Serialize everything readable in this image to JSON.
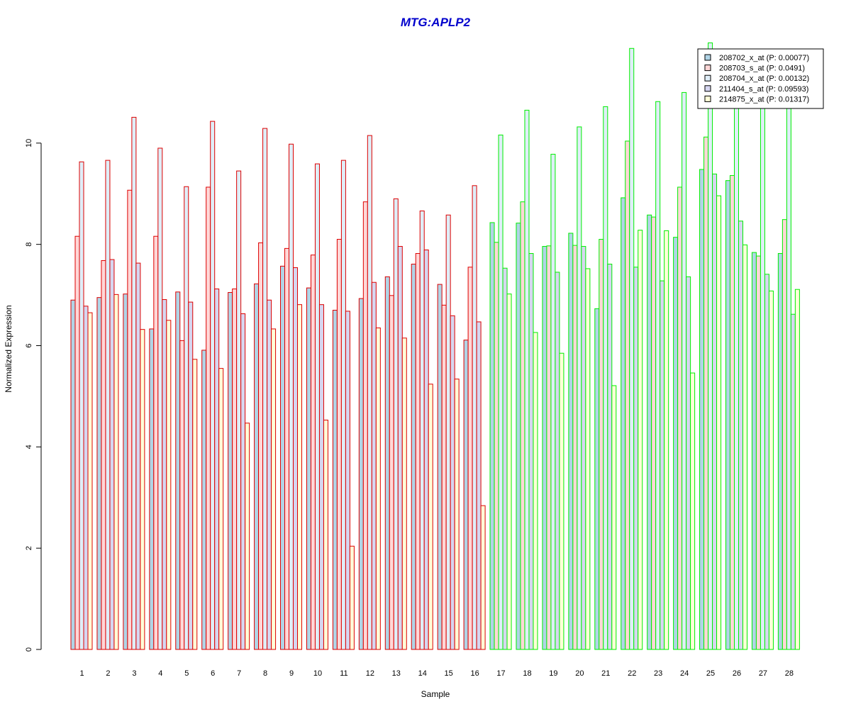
{
  "chart_data": {
    "type": "bar",
    "title": "MTG:APLP2",
    "xlabel": "Sample",
    "ylabel": "Normalized Expression",
    "ylim": [
      0,
      12
    ],
    "yticks": [
      0,
      2,
      4,
      6,
      8,
      10
    ],
    "grid": false,
    "legend_position": "top-right",
    "categories": [
      "1",
      "2",
      "3",
      "4",
      "5",
      "6",
      "7",
      "8",
      "9",
      "10",
      "11",
      "12",
      "13",
      "14",
      "15",
      "16",
      "17",
      "18",
      "19",
      "20",
      "21",
      "22",
      "23",
      "24",
      "25",
      "26",
      "27",
      "28"
    ],
    "group_outline_colors": {
      "control": "#dd0000",
      "disease": "#00ee00"
    },
    "sample_groups": [
      "control",
      "control",
      "control",
      "control",
      "control",
      "control",
      "control",
      "control",
      "control",
      "control",
      "control",
      "control",
      "control",
      "control",
      "control",
      "control",
      "disease",
      "disease",
      "disease",
      "disease",
      "disease",
      "disease",
      "disease",
      "disease",
      "disease",
      "disease",
      "disease",
      "disease"
    ],
    "series": [
      {
        "name": "208702_x_at (P: 0.00077)",
        "fill": "#b0d4e6",
        "values": [
          6.9,
          6.95,
          7.02,
          6.33,
          7.06,
          5.91,
          7.05,
          7.22,
          7.57,
          7.14,
          6.7,
          6.93,
          7.36,
          7.61,
          7.21,
          6.11,
          8.43,
          8.42,
          7.96,
          8.22,
          6.73,
          8.92,
          8.58,
          8.14,
          9.48,
          9.26,
          7.84,
          7.82
        ]
      },
      {
        "name": "208703_s_at (P: 0.0491)",
        "fill": "#ffd7d7",
        "values": [
          8.16,
          7.68,
          9.07,
          8.16,
          6.1,
          9.13,
          7.12,
          8.03,
          7.92,
          7.79,
          8.1,
          8.84,
          6.99,
          7.82,
          6.8,
          7.55,
          8.04,
          8.84,
          7.97,
          7.98,
          8.1,
          10.04,
          8.54,
          9.13,
          10.12,
          9.36,
          7.77,
          8.49
        ]
      },
      {
        "name": "208704_x_at (P: 0.00132)",
        "fill": "#dfeef8",
        "values": [
          9.63,
          9.66,
          10.51,
          9.9,
          9.14,
          10.43,
          9.45,
          10.29,
          9.98,
          9.59,
          9.66,
          10.15,
          8.9,
          8.66,
          8.58,
          9.16,
          10.16,
          10.65,
          9.78,
          10.32,
          10.72,
          11.87,
          10.82,
          11.0,
          11.98,
          11.15,
          11.06,
          11.06
        ]
      },
      {
        "name": "211404_s_at (P: 0.09593)",
        "fill": "#d6d6f0",
        "values": [
          6.78,
          7.7,
          7.63,
          6.91,
          6.86,
          7.12,
          6.63,
          6.9,
          7.54,
          6.81,
          6.68,
          7.25,
          7.96,
          7.89,
          6.59,
          6.47,
          7.53,
          7.82,
          7.45,
          7.96,
          7.61,
          7.55,
          7.28,
          7.36,
          9.39,
          8.46,
          7.41,
          6.62
        ]
      },
      {
        "name": "214875_x_at (P: 0.01317)",
        "fill": "#ffffd8",
        "values": [
          6.65,
          7.01,
          6.32,
          6.5,
          5.73,
          5.55,
          4.47,
          6.33,
          6.81,
          4.53,
          2.04,
          6.35,
          6.15,
          5.24,
          5.34,
          2.84,
          7.02,
          6.26,
          5.85,
          7.52,
          5.21,
          8.28,
          8.27,
          5.46,
          8.96,
          7.99,
          7.08,
          7.11
        ]
      }
    ]
  }
}
